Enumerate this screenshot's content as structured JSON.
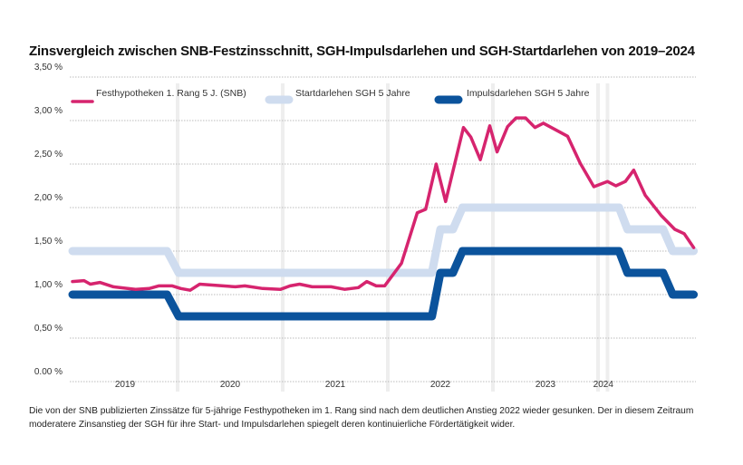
{
  "chart_data": {
    "type": "line",
    "title": "Zinsvergleich zwischen SNB-Festzinsschnitt, SGH-Impulsdarlehen und SGH-Startdarlehen von 2019–2024",
    "ylim": [
      0,
      3.5
    ],
    "xlim": [
      2019.0,
      2024.92
    ],
    "y_ticks": [
      "0.00 %",
      "0,50 %",
      "1,00 %",
      "1,50 %",
      "2,00 %",
      "2,50 %",
      "3,00 %",
      "3,50 %"
    ],
    "y_tick_values": [
      0,
      0.5,
      1.0,
      1.5,
      2.0,
      2.5,
      3.0,
      3.5
    ],
    "x_ticks": [
      {
        "label": "2019",
        "x": 2019.5
      },
      {
        "label": "2020",
        "x": 2020.5
      },
      {
        "label": "2021",
        "x": 2021.5
      },
      {
        "label": "2022",
        "x": 2022.5
      },
      {
        "label": "2023",
        "x": 2023.5
      },
      {
        "label": "2024",
        "x": 2024.05
      }
    ],
    "year_separators": [
      2020,
      2021,
      2022,
      2023,
      2024,
      2024.09
    ],
    "grid": "horizontal dotted",
    "legend_position": "top",
    "series": [
      {
        "name": "Festhypotheken 1. Rang 5 J. (SNB)",
        "color": "#d6246e",
        "points": [
          [
            2019.0,
            1.15
          ],
          [
            2019.11,
            1.16
          ],
          [
            2019.17,
            1.12
          ],
          [
            2019.26,
            1.14
          ],
          [
            2019.39,
            1.09
          ],
          [
            2019.6,
            1.06
          ],
          [
            2019.73,
            1.07
          ],
          [
            2019.82,
            1.1
          ],
          [
            2019.95,
            1.1
          ],
          [
            2020.03,
            1.07
          ],
          [
            2020.12,
            1.05
          ],
          [
            2020.21,
            1.12
          ],
          [
            2020.55,
            1.09
          ],
          [
            2020.64,
            1.1
          ],
          [
            2020.81,
            1.07
          ],
          [
            2020.98,
            1.06
          ],
          [
            2021.07,
            1.1
          ],
          [
            2021.16,
            1.12
          ],
          [
            2021.28,
            1.09
          ],
          [
            2021.46,
            1.09
          ],
          [
            2021.59,
            1.06
          ],
          [
            2021.72,
            1.08
          ],
          [
            2021.8,
            1.15
          ],
          [
            2021.89,
            1.1
          ],
          [
            2021.97,
            1.1
          ],
          [
            2022.13,
            1.36
          ],
          [
            2022.28,
            1.94
          ],
          [
            2022.36,
            1.98
          ],
          [
            2022.46,
            2.5
          ],
          [
            2022.55,
            2.07
          ],
          [
            2022.72,
            2.92
          ],
          [
            2022.79,
            2.81
          ],
          [
            2022.88,
            2.55
          ],
          [
            2022.97,
            2.94
          ],
          [
            2023.04,
            2.64
          ],
          [
            2023.14,
            2.93
          ],
          [
            2023.22,
            3.03
          ],
          [
            2023.31,
            3.03
          ],
          [
            2023.4,
            2.92
          ],
          [
            2023.48,
            2.97
          ],
          [
            2023.71,
            2.82
          ],
          [
            2023.83,
            2.51
          ],
          [
            2023.96,
            2.24
          ],
          [
            2024.09,
            2.3
          ],
          [
            2024.17,
            2.25
          ],
          [
            2024.26,
            2.3
          ],
          [
            2024.34,
            2.43
          ],
          [
            2024.45,
            2.14
          ],
          [
            2024.6,
            1.91
          ],
          [
            2024.73,
            1.75
          ],
          [
            2024.82,
            1.7
          ],
          [
            2024.91,
            1.54
          ]
        ]
      },
      {
        "name": "Startdarlehen SGH 5 Jahre",
        "color": "#cfdcef",
        "points": [
          [
            2019.0,
            1.5
          ],
          [
            2019.9,
            1.5
          ],
          [
            2020.01,
            1.25
          ],
          [
            2022.42,
            1.25
          ],
          [
            2022.5,
            1.75
          ],
          [
            2022.62,
            1.75
          ],
          [
            2022.71,
            2.0
          ],
          [
            2024.2,
            2.0
          ],
          [
            2024.28,
            1.75
          ],
          [
            2024.62,
            1.75
          ],
          [
            2024.71,
            1.5
          ],
          [
            2024.91,
            1.5
          ]
        ]
      },
      {
        "name": "Impulsdarlehen SGH 5 Jahre",
        "color": "#0b539c",
        "points": [
          [
            2019.0,
            1.0
          ],
          [
            2019.9,
            1.0
          ],
          [
            2020.01,
            0.75
          ],
          [
            2022.42,
            0.75
          ],
          [
            2022.5,
            1.25
          ],
          [
            2022.62,
            1.25
          ],
          [
            2022.71,
            1.5
          ],
          [
            2024.2,
            1.5
          ],
          [
            2024.28,
            1.25
          ],
          [
            2024.62,
            1.25
          ],
          [
            2024.71,
            1.0
          ],
          [
            2024.91,
            1.0
          ]
        ]
      }
    ]
  },
  "note": "Die von der SNB publizierten Zinssätze für 5-jährige Festhypotheken im 1. Rang sind nach dem deutlichen Anstieg 2022 wieder gesunken. Der in diesem Zeitraum moderatere Zinsanstieg der SGH für ihre Start- und Impulsdarlehen spiegelt deren kontinuierliche Fördertätigkeit wider."
}
